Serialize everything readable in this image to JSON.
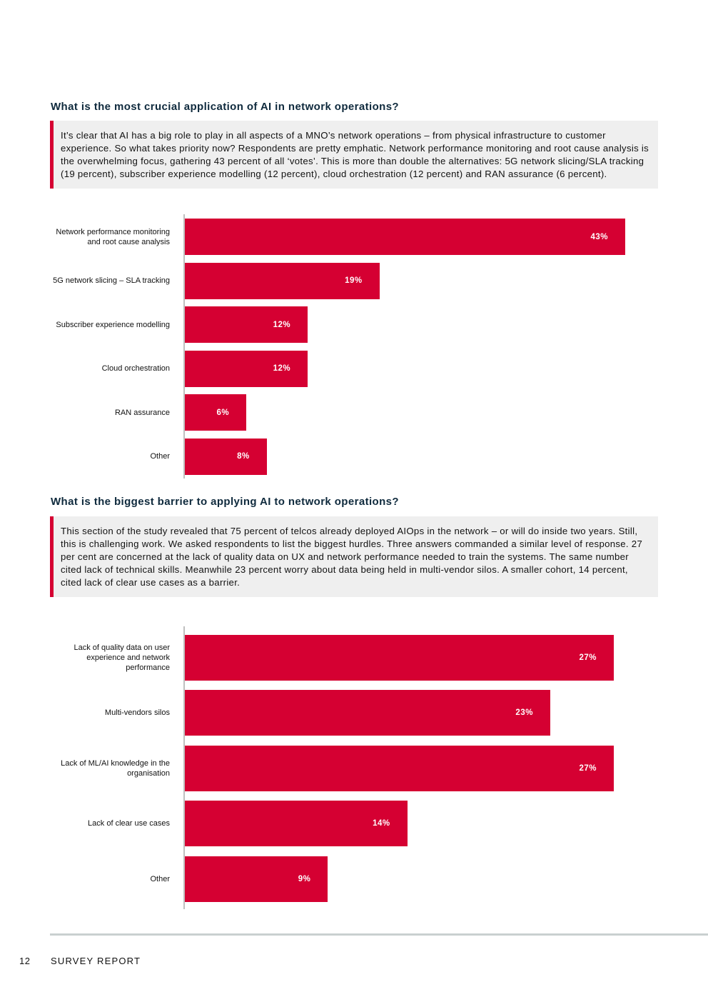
{
  "section1": {
    "heading": "What is the most crucial application of AI in network operations?",
    "callout": "It’s clear that AI has a big role to play in all aspects of a MNO’s network operations – from physical infrastructure to customer experience. So what takes priority now? Respondents are pretty emphatic. Network performance monitoring and root cause analysis is the overwhelming focus, gathering 43 percent of all ‘votes’. This is more than double the alternatives: 5G network slicing/SLA tracking (19 percent), subscriber experience modelling (12 percent), cloud orchestration (12 percent) and RAN assurance (6 percent)."
  },
  "section2": {
    "heading": "What is the biggest barrier to applying AI to network operations?",
    "callout": "This section of the study revealed that 75 percent of telcos already deployed AIOps in the network – or will do inside two years. Still, this is challenging work. We asked respondents to list the biggest hurdles. Three answers commanded a similar level of response. 27 per cent are concerned at the lack of quality data on UX and network performance needed to train the systems. The same number cited lack of technical skills. Meanwhile 23 percent worry about data being held in multi-vendor silos. A smaller cohort, 14 percent, cited lack of clear use cases as a barrier."
  },
  "chart_data": [
    {
      "type": "bar",
      "orientation": "horizontal",
      "categories": [
        "Network performance monitoring and root cause analysis",
        "5G network slicing – SLA tracking",
        "Subscriber experience modelling",
        "Cloud orchestration",
        "RAN assurance",
        "Other"
      ],
      "values": [
        43,
        19,
        12,
        12,
        6,
        8
      ],
      "labels": [
        "43%",
        "19%",
        "12%",
        "12%",
        "6%",
        "8%"
      ],
      "unit": "%",
      "grid": false,
      "color": "#d50032"
    },
    {
      "type": "bar",
      "orientation": "horizontal",
      "categories": [
        "Lack of quality data on user experience and network performance",
        "Multi-vendors silos",
        "Lack of ML/AI knowledge in the organisation",
        "Lack of clear use cases",
        "Other"
      ],
      "values": [
        27,
        23,
        27,
        14,
        9
      ],
      "labels": [
        "27%",
        "23%",
        "27%",
        "14%",
        "9%"
      ],
      "unit": "%",
      "grid": false,
      "color": "#d50032"
    }
  ],
  "footer": {
    "page_number": "12",
    "title": "SURVEY REPORT"
  },
  "colors": {
    "accent": "#d50032",
    "heading": "#0f2a3d",
    "callout_bg": "#efefef"
  }
}
